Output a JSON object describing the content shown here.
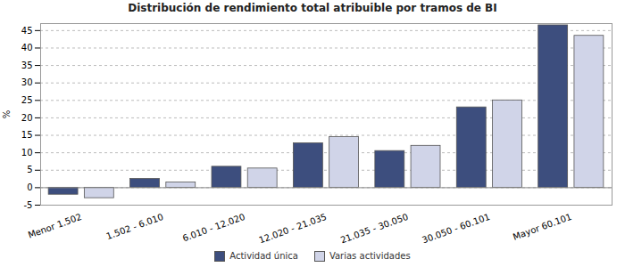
{
  "chart_data": {
    "type": "bar",
    "title": "Distribución de rendimiento total atribuible por tramos de BI",
    "y_label": "%",
    "categories": [
      "Menor 1.502",
      "1.502 - 6.010",
      "6.010 - 12.020",
      "12.020 - 21.035",
      "21.035 - 30.050",
      "30.050 - 60.101",
      "Mayor 60.101"
    ],
    "series": [
      {
        "name": "Actividad única",
        "color": "#3d4e7e",
        "values": [
          -2,
          2.5,
          6,
          12.7,
          10.5,
          23,
          46.5
        ]
      },
      {
        "name": "Varias actividades",
        "color": "#d0d4e8",
        "values": [
          -3,
          1.5,
          5.5,
          14.5,
          12,
          25,
          43.5
        ]
      }
    ],
    "ylim": [
      -5,
      47
    ],
    "yticks": [
      -5,
      0,
      5,
      10,
      15,
      20,
      25,
      30,
      35,
      40,
      45
    ],
    "grid": true,
    "legend": "bottom"
  }
}
